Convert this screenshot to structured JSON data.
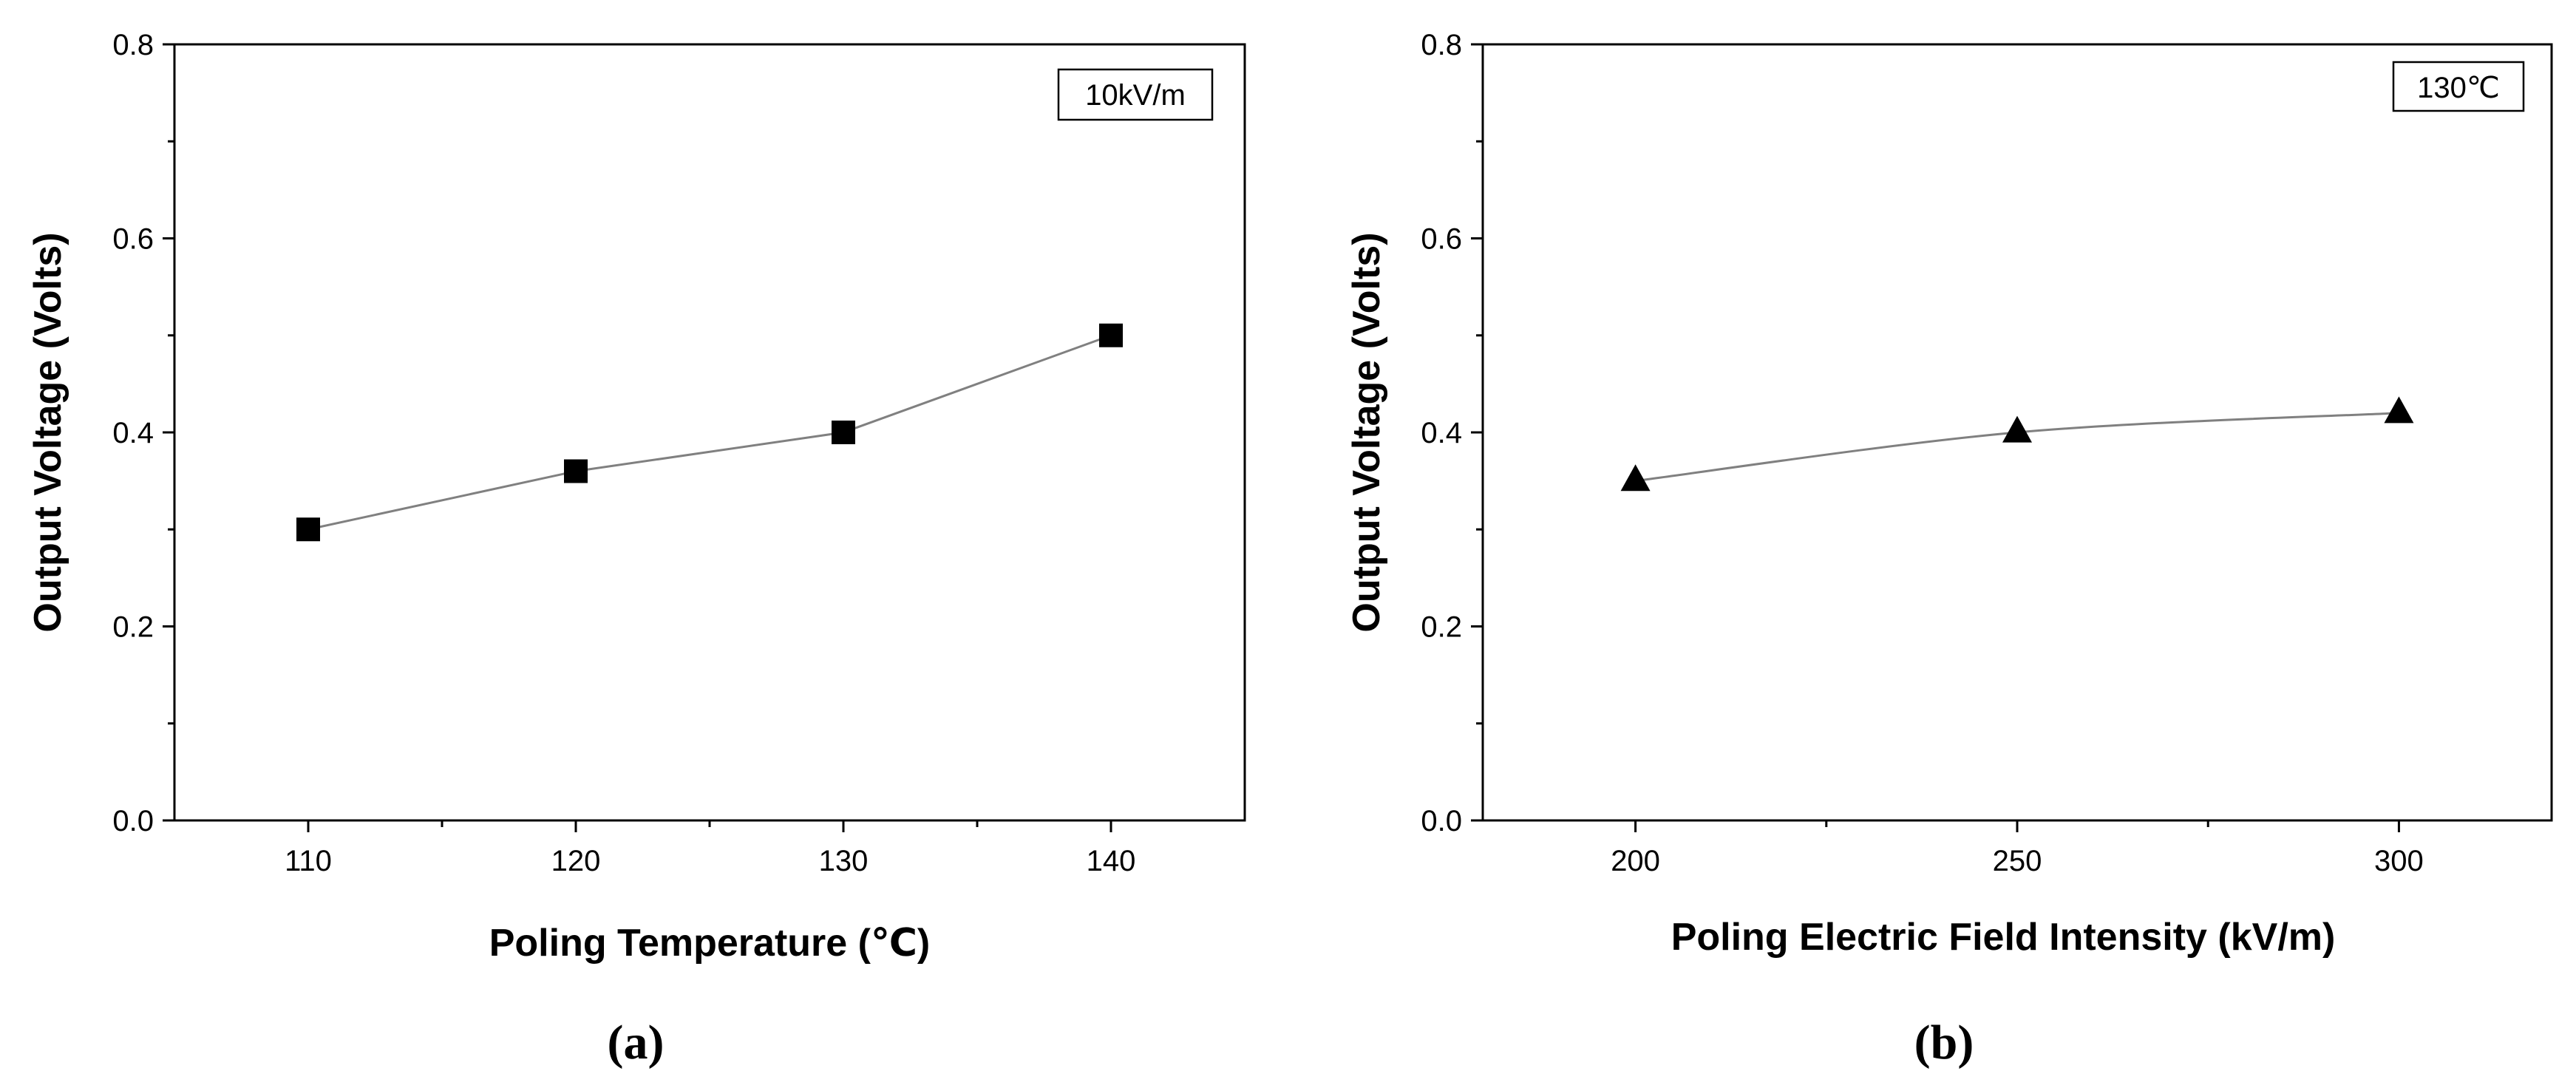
{
  "chart_data": [
    {
      "type": "line",
      "panel_label": "(a)",
      "xlabel": "Poling Temperature (℃)",
      "ylabel": "Output Voltage (Volts)",
      "x": [
        110,
        120,
        130,
        140
      ],
      "series": [
        {
          "name": "10kV/m",
          "marker": "square",
          "values": [
            0.3,
            0.36,
            0.4,
            0.5
          ]
        }
      ],
      "xlim": [
        105,
        145
      ],
      "ylim": [
        0.0,
        0.8
      ],
      "xticks": [
        "110",
        "120",
        "130",
        "140"
      ],
      "yticks": [
        "0.0",
        "0.2",
        "0.4",
        "0.6",
        "0.8"
      ],
      "annotation": "10kV/m",
      "grid": false
    },
    {
      "type": "line",
      "panel_label": "(b)",
      "xlabel": "Poling Electric Field Intensity (kV/m)",
      "ylabel": "Output Voltage (Volts)",
      "x": [
        200,
        250,
        300
      ],
      "series": [
        {
          "name": "130℃",
          "marker": "triangle",
          "values": [
            0.35,
            0.4,
            0.42
          ]
        }
      ],
      "xlim": [
        180,
        320
      ],
      "ylim": [
        0.0,
        0.8
      ],
      "xticks": [
        "200",
        "250",
        "300"
      ],
      "yticks": [
        "0.0",
        "0.2",
        "0.4",
        "0.6",
        "0.8"
      ],
      "annotation": "130℃",
      "grid": false
    }
  ],
  "colors": {
    "line": "#808080",
    "marker": "#000000",
    "axis": "#000000"
  }
}
